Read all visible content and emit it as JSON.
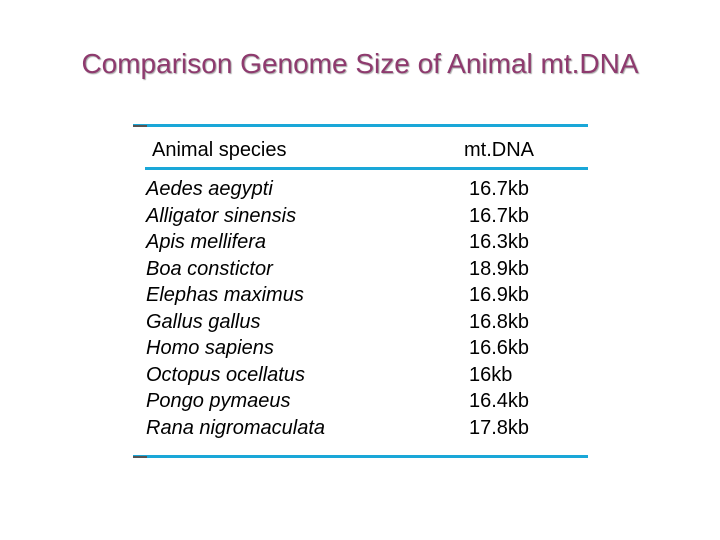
{
  "title": "Comparison Genome Size of Animal mt.DNA",
  "colors": {
    "title": "#8e3a6e",
    "rules": "#1aa7d8"
  },
  "table": {
    "headers": {
      "species": "Animal species",
      "mtdna": "mt.DNA"
    },
    "rows": [
      {
        "species": "Aedes aegypti",
        "size": "16.7kb"
      },
      {
        "species": "Alligator sinensis",
        "size": "16.7kb"
      },
      {
        "species": "Apis mellifera",
        "size": "16.3kb"
      },
      {
        "species": "Boa constictor",
        "size": "18.9kb"
      },
      {
        "species": "Elephas maximus",
        "size": "16.9kb"
      },
      {
        "species": "Gallus gallus",
        "size": "16.8kb"
      },
      {
        "species": "Homo sapiens",
        "size": "16.6kb"
      },
      {
        "species": "Octopus ocellatus",
        "size": "16kb"
      },
      {
        "species": "Pongo pymaeus",
        "size": "16.4kb"
      },
      {
        "species": "Rana nigromaculata",
        "size": "17.8kb"
      }
    ]
  }
}
